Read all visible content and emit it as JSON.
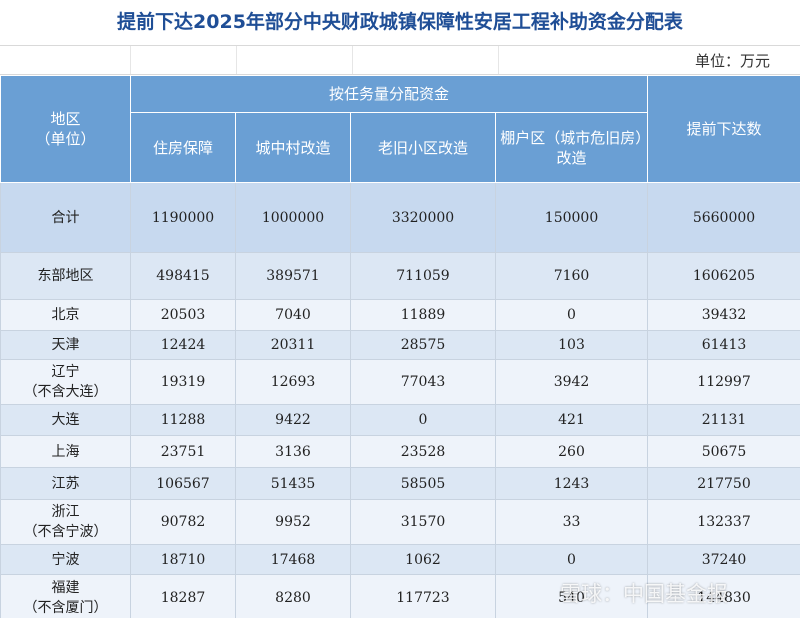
{
  "header": {
    "title": "提前下达2025年部分中央财政城镇保障性安居工程补助资金分配表",
    "unit": "单位：万元"
  },
  "table": {
    "region_header": "地区\n（单位）",
    "group_header": "按任务量分配资金",
    "columns": [
      "住房保障",
      "城中村改造",
      "老旧小区改造",
      "棚户区（城市危旧房）改造"
    ],
    "total_header": "提前下达数",
    "rows": [
      [
        "合计",
        1190000,
        1000000,
        3320000,
        150000,
        5660000
      ],
      [
        "东部地区",
        498415,
        389571,
        711059,
        7160,
        1606205
      ],
      [
        "北京",
        20503,
        7040,
        11889,
        0,
        39432
      ],
      [
        "天津",
        12424,
        20311,
        28575,
        103,
        61413
      ],
      [
        "辽宁\n（不含大连）",
        19319,
        12693,
        77043,
        3942,
        112997
      ],
      [
        "大连",
        11288,
        9422,
        0,
        421,
        21131
      ],
      [
        "上海",
        23751,
        3136,
        23528,
        260,
        50675
      ],
      [
        "江苏",
        106567,
        51435,
        58505,
        1243,
        217750
      ],
      [
        "浙江\n（不含宁波）",
        90782,
        9952,
        31570,
        33,
        132337
      ],
      [
        "宁波",
        18710,
        17468,
        1062,
        0,
        37240
      ],
      [
        "福建\n（不含厦门）",
        18287,
        8280,
        117723,
        540,
        144830
      ]
    ]
  },
  "watermark": "雪球：中国基金报"
}
